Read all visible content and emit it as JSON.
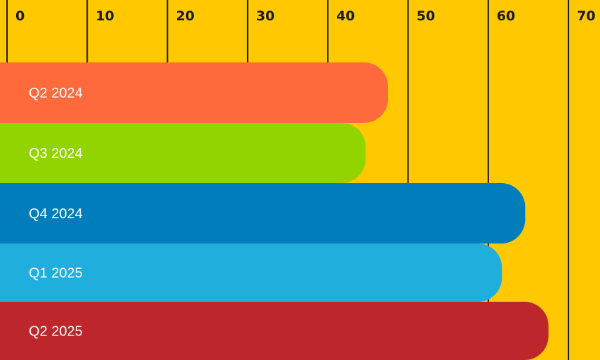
{
  "chart_data": {
    "type": "bar",
    "orientation": "horizontal",
    "categories": [
      "Q2 2024",
      "Q3 2024",
      "Q4 2024",
      "Q1 2025",
      "Q2 2025"
    ],
    "values": [
      47.5,
      44.7,
      64.6,
      61.7,
      67.5
    ],
    "xlim": [
      0,
      70
    ],
    "x_ticks": [
      "0",
      "10",
      "20",
      "30",
      "40",
      "50",
      "60",
      "70"
    ],
    "grid": true,
    "legend": "none",
    "colors": {
      "background": "#FFC800",
      "gridline": "#1a1a1a",
      "bars": [
        "#FF6A3D",
        "#92D400",
        "#007DBA",
        "#20AFDC",
        "#BD262B"
      ],
      "bar_label": "#FFFFFF"
    }
  }
}
